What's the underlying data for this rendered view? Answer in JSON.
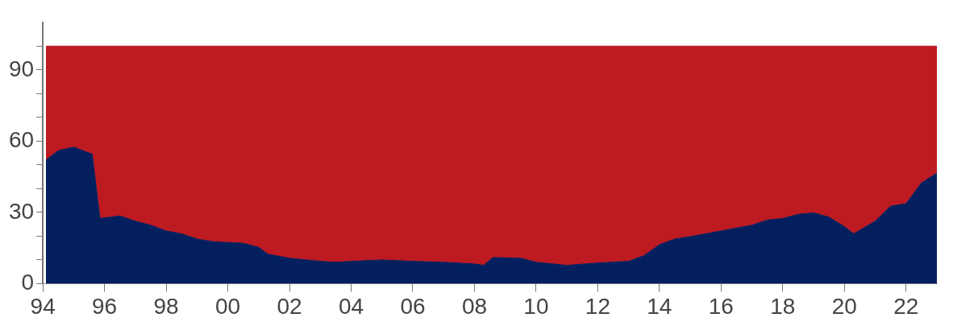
{
  "chart_data": {
    "type": "area",
    "stacked": true,
    "x": [
      1994.1,
      1994.5,
      1995,
      1995.5,
      1995.6,
      1995.85,
      1996.5,
      1997,
      1997.5,
      1998,
      1998.5,
      1999,
      1999.5,
      2000,
      2000.5,
      2001,
      2001.3,
      2002,
      2003,
      2003.5,
      2004,
      2005,
      2006,
      2007,
      2008,
      2008.3,
      2008.6,
      2009.5,
      2010,
      2011,
      2012,
      2013,
      2013.5,
      2014,
      2014.5,
      2015,
      2016,
      2017,
      2017.5,
      2018,
      2018.5,
      2019,
      2019.5,
      2020,
      2020.3,
      2021,
      2021.5,
      2022,
      2022.5,
      2023
    ],
    "series": [
      {
        "color": "#031f5e",
        "values": [
          52,
          56,
          57.5,
          55,
          54.5,
          27.5,
          28.5,
          26.3,
          24.6,
          22.2,
          21,
          18.8,
          17.7,
          17.3,
          17,
          15.3,
          12.4,
          10.7,
          9.4,
          9,
          9.4,
          10,
          9.4,
          9,
          8.3,
          7.7,
          11,
          10.7,
          9,
          7.7,
          8.7,
          9.4,
          11.8,
          16.4,
          18.8,
          19.8,
          22.2,
          24.6,
          26.8,
          27.4,
          29.2,
          29.8,
          28,
          24,
          21,
          26.3,
          32.6,
          33.7,
          42.4,
          46.5
        ]
      },
      {
        "color": "#bd1a22",
        "values": [
          48,
          44,
          42.5,
          45,
          45.5,
          72.5,
          71.5,
          73.7,
          75.4,
          77.8,
          79,
          81.2,
          82.3,
          82.7,
          83,
          84.7,
          87.6,
          89.3,
          90.6,
          91,
          90.6,
          90,
          90.6,
          91,
          91.7,
          92.3,
          89,
          89.3,
          91,
          92.3,
          91.3,
          90.6,
          88.2,
          83.6,
          81.2,
          80.2,
          77.8,
          75.4,
          73.2,
          72.6,
          70.8,
          70.2,
          72,
          76,
          79,
          73.7,
          67.4,
          66.3,
          57.6,
          53.5
        ]
      }
    ],
    "xlim": [
      1994,
      2023
    ],
    "xticks": [
      {
        "value": 1994,
        "label": "94"
      },
      {
        "value": 1996,
        "label": "96"
      },
      {
        "value": 1998,
        "label": "98"
      },
      {
        "value": 2000,
        "label": "00"
      },
      {
        "value": 2002,
        "label": "02"
      },
      {
        "value": 2004,
        "label": "04"
      },
      {
        "value": 2006,
        "label": "06"
      },
      {
        "value": 2008,
        "label": "08"
      },
      {
        "value": 2010,
        "label": "10"
      },
      {
        "value": 2012,
        "label": "12"
      },
      {
        "value": 2014,
        "label": "14"
      },
      {
        "value": 2016,
        "label": "16"
      },
      {
        "value": 2018,
        "label": "18"
      },
      {
        "value": 2020,
        "label": "20"
      },
      {
        "value": 2022,
        "label": "22"
      }
    ],
    "ylim": [
      0,
      110
    ],
    "yticks": [
      0,
      {
        "value": 10,
        "label": null
      },
      {
        "value": 20,
        "label": null
      },
      30,
      {
        "value": 40,
        "label": null
      },
      {
        "value": 50,
        "label": null
      },
      60,
      {
        "value": 70,
        "label": null
      },
      {
        "value": 80,
        "label": null
      },
      90,
      {
        "value": 100,
        "label": null
      }
    ],
    "grid": false,
    "legend": false
  }
}
